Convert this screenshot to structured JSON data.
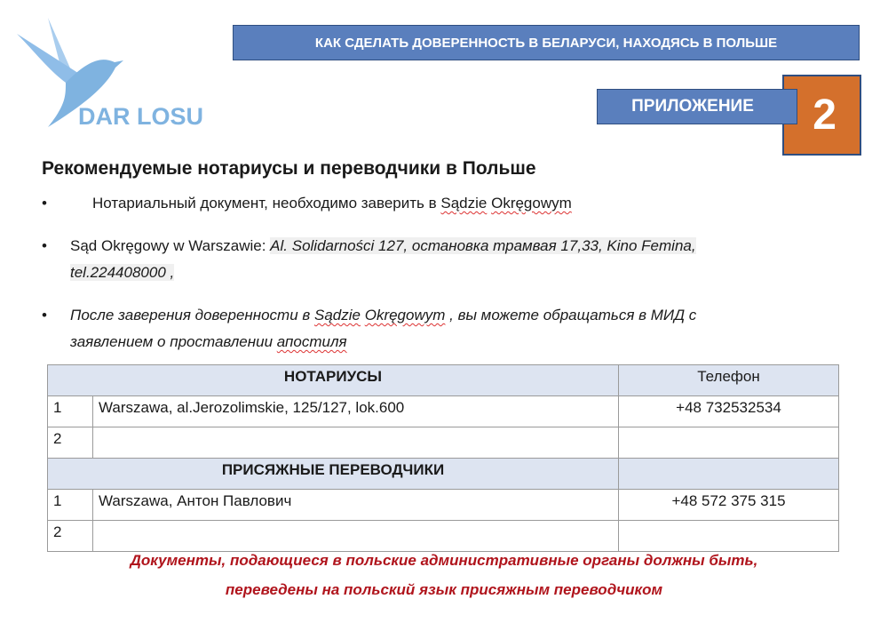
{
  "logo": {
    "text": "DAR LOSU",
    "color": "#7fb3e0"
  },
  "banner": {
    "title": "КАК СДЕЛАТЬ ДОВЕРЕННОСТЬ В БЕЛАРУСИ, НАХОДЯСЬ В ПОЛЬШЕ",
    "appendix_label": "ПРИЛОЖЕНИЕ",
    "appendix_number": "2",
    "accent": "#d4702c",
    "blue": "#5a7fbd"
  },
  "heading": "Рекомендуемые нотариусы и переводчики в Польше",
  "bullets": {
    "b1": {
      "pre": "Нотариальный документ, необходимо заверить в ",
      "w1": "Sądzie",
      "sp": " ",
      "w2": "Okręgowym"
    },
    "b2": {
      "pre": "Sąd Okręgowy  w Warszawie: ",
      "addr": "Al. Solidarności 127, остановка трамвая 17,33, Kino Femina,",
      "tel": "tel.224408000 ,"
    },
    "b3": {
      "pre": "После заверения доверенности в ",
      "w1": "Sądzie",
      "sp": " ",
      "w2": "Okręgowym",
      "post": " , вы можете обращаться в МИД с",
      "line2": "заявлением о проставлении ",
      "w3": "апостиля"
    }
  },
  "table": {
    "notaries_header": "НОТАРИУСЫ",
    "phone_header": "Телефон",
    "notaries": [
      {
        "n": "1",
        "address": "Warszawa, al.Jerozolimskie, 125/127, lok.600",
        "phone": "+48 732532534"
      },
      {
        "n": "2",
        "address": "",
        "phone": ""
      }
    ],
    "translators_header": "ПРИСЯЖНЫЕ ПЕРЕВОДЧИКИ",
    "translators": [
      {
        "n": "1",
        "address": "Warszawa, Антон Павлович",
        "phone": "+48 572 375 315"
      },
      {
        "n": "2",
        "address": "",
        "phone": ""
      }
    ]
  },
  "note": {
    "line1": "Документы, подающиеся в польские административные органы должны быть,",
    "line2": "переведены на польский язык присяжным переводчиком",
    "color": "#b0141c"
  }
}
